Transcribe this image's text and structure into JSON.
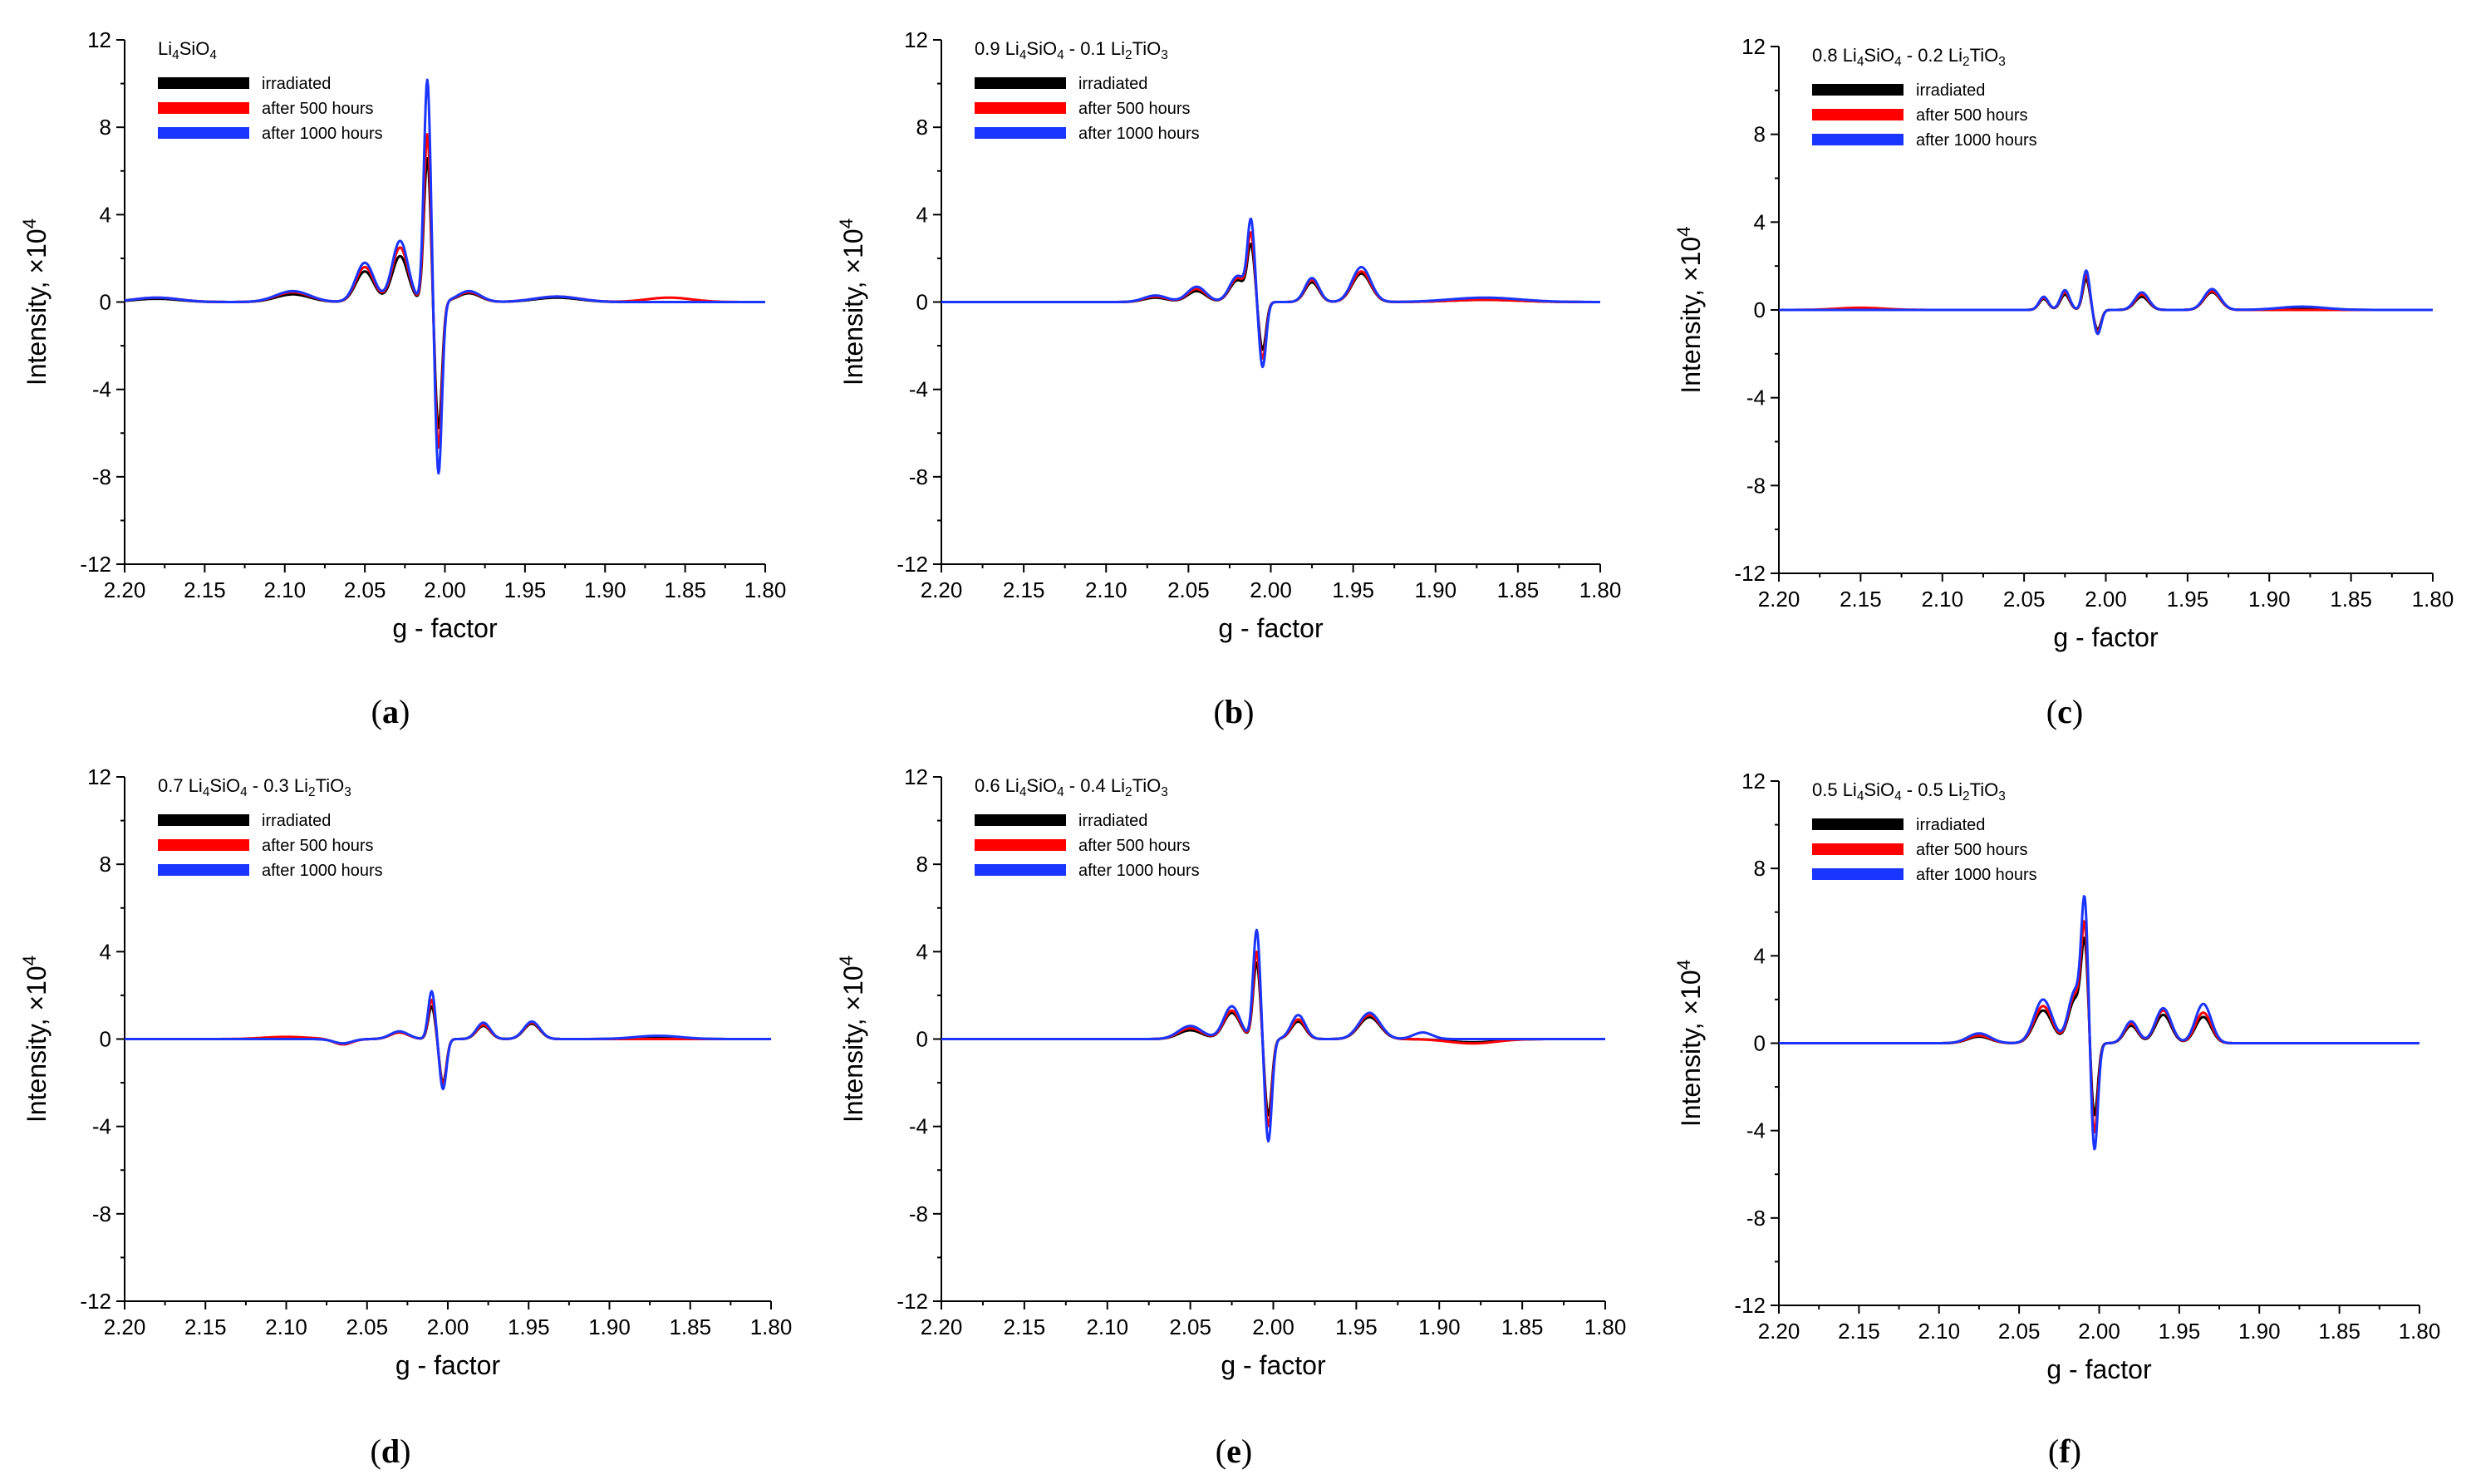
{
  "chart_data": [
    {
      "panel": "(a)",
      "sub_letter": "a",
      "type": "line",
      "title_parts": [
        "Li",
        "4",
        "SiO",
        "4"
      ],
      "xlabel": "g - factor",
      "ylabel": "Intensity, ×10",
      "ylabel_exp": "4",
      "xlim": [
        2.2,
        1.8
      ],
      "ylim": [
        -12,
        12
      ],
      "xticks": [
        "2.20",
        "2.15",
        "2.10",
        "2.05",
        "2.00",
        "1.95",
        "1.90",
        "1.85",
        "1.80"
      ],
      "yticks": [
        "12",
        "8",
        "4",
        "0",
        "-4",
        "-8",
        "-12"
      ],
      "series": [
        {
          "name": "irradiated",
          "color": "#000000",
          "peaks": [
            [
              2.18,
              0.15,
              0.02
            ],
            [
              2.095,
              0.35,
              0.015
            ],
            [
              2.05,
              1.4,
              0.008
            ],
            [
              2.028,
              2.1,
              0.007
            ],
            [
              2.011,
              6.6,
              0.003
            ],
            [
              2.004,
              -5.8,
              0.003
            ],
            [
              1.985,
              0.4,
              0.01
            ],
            [
              1.93,
              0.2,
              0.02
            ]
          ]
        },
        {
          "name": "after 500 hours",
          "color": "#ff0000",
          "peaks": [
            [
              2.18,
              0.2,
              0.02
            ],
            [
              2.095,
              0.45,
              0.015
            ],
            [
              2.05,
              1.6,
              0.008
            ],
            [
              2.028,
              2.5,
              0.007
            ],
            [
              2.011,
              7.7,
              0.003
            ],
            [
              2.004,
              -6.7,
              0.003
            ],
            [
              1.985,
              0.45,
              0.01
            ],
            [
              1.93,
              0.25,
              0.02
            ],
            [
              1.86,
              0.2,
              0.02
            ]
          ]
        },
        {
          "name": "after 1000 hours",
          "color": "#1a35ff",
          "peaks": [
            [
              2.18,
              0.2,
              0.02
            ],
            [
              2.095,
              0.5,
              0.015
            ],
            [
              2.05,
              1.8,
              0.008
            ],
            [
              2.028,
              2.8,
              0.007
            ],
            [
              2.011,
              10.2,
              0.003
            ],
            [
              2.004,
              -7.9,
              0.003
            ],
            [
              1.985,
              0.5,
              0.01
            ],
            [
              1.93,
              0.25,
              0.02
            ]
          ]
        }
      ]
    },
    {
      "panel": "(b)",
      "sub_letter": "b",
      "type": "line",
      "title_parts": [
        "0.9 Li",
        "4",
        "SiO",
        "4",
        " - 0.1 Li",
        "2",
        "TiO",
        "3"
      ],
      "xlabel": "g - factor",
      "ylabel": "Intensity, ×10",
      "ylabel_exp": "4",
      "xlim": [
        2.2,
        1.8
      ],
      "ylim": [
        -12,
        12
      ],
      "xticks": [
        "2.20",
        "2.15",
        "2.10",
        "2.05",
        "2.00",
        "1.95",
        "1.90",
        "1.85",
        "1.80"
      ],
      "yticks": [
        "12",
        "8",
        "4",
        "0",
        "-4",
        "-8",
        "-12"
      ],
      "series": [
        {
          "name": "irradiated",
          "color": "#000000",
          "peaks": [
            [
              2.07,
              0.2,
              0.01
            ],
            [
              2.045,
              0.5,
              0.008
            ],
            [
              2.02,
              1.0,
              0.007
            ],
            [
              2.012,
              2.4,
              0.003
            ],
            [
              2.005,
              -2.2,
              0.003
            ],
            [
              1.975,
              0.9,
              0.006
            ],
            [
              1.945,
              1.3,
              0.008
            ],
            [
              1.87,
              0.1,
              0.03
            ]
          ]
        },
        {
          "name": "after 500 hours",
          "color": "#ff0000",
          "peaks": [
            [
              2.07,
              0.25,
              0.01
            ],
            [
              2.045,
              0.6,
              0.008
            ],
            [
              2.02,
              1.1,
              0.007
            ],
            [
              2.012,
              2.9,
              0.003
            ],
            [
              2.005,
              -2.6,
              0.003
            ],
            [
              1.975,
              1.0,
              0.006
            ],
            [
              1.945,
              1.4,
              0.008
            ],
            [
              1.87,
              0.1,
              0.03
            ]
          ]
        },
        {
          "name": "after 1000 hours",
          "color": "#1a35ff",
          "peaks": [
            [
              2.07,
              0.3,
              0.01
            ],
            [
              2.045,
              0.7,
              0.008
            ],
            [
              2.02,
              1.2,
              0.007
            ],
            [
              2.012,
              3.5,
              0.003
            ],
            [
              2.005,
              -3.0,
              0.003
            ],
            [
              1.975,
              1.1,
              0.006
            ],
            [
              1.945,
              1.6,
              0.008
            ],
            [
              1.87,
              0.2,
              0.03
            ]
          ]
        }
      ]
    },
    {
      "panel": "(c)",
      "sub_letter": "c",
      "type": "line",
      "title_parts": [
        "0.8 Li",
        "4",
        "SiO",
        "4",
        " - 0.2 Li",
        "2",
        "TiO",
        "3"
      ],
      "xlabel": "g - factor",
      "ylabel": "Intensity, ×10",
      "ylabel_exp": "4",
      "xlim": [
        2.2,
        1.8
      ],
      "ylim": [
        -12,
        12
      ],
      "xticks": [
        "2.20",
        "2.15",
        "2.10",
        "2.05",
        "2.00",
        "1.95",
        "1.90",
        "1.85",
        "1.80"
      ],
      "yticks": [
        "12",
        "8",
        "4",
        "0",
        "-4",
        "-8",
        "-12"
      ],
      "series": [
        {
          "name": "irradiated",
          "color": "#000000",
          "peaks": [
            [
              2.038,
              0.5,
              0.004
            ],
            [
              2.025,
              0.7,
              0.004
            ],
            [
              2.012,
              1.4,
              0.003
            ],
            [
              2.005,
              -0.9,
              0.003
            ],
            [
              1.978,
              0.6,
              0.006
            ],
            [
              1.935,
              0.8,
              0.007
            ],
            [
              1.88,
              0.1,
              0.02
            ]
          ]
        },
        {
          "name": "after 500 hours",
          "color": "#ff0000",
          "peaks": [
            [
              2.038,
              0.55,
              0.004
            ],
            [
              2.025,
              0.8,
              0.004
            ],
            [
              2.012,
              1.6,
              0.003
            ],
            [
              2.005,
              -1.0,
              0.003
            ],
            [
              1.978,
              0.7,
              0.006
            ],
            [
              1.935,
              0.85,
              0.007
            ],
            [
              2.15,
              0.1,
              0.02
            ]
          ]
        },
        {
          "name": "after 1000 hours",
          "color": "#1a35ff",
          "peaks": [
            [
              2.038,
              0.6,
              0.004
            ],
            [
              2.025,
              0.9,
              0.004
            ],
            [
              2.012,
              1.8,
              0.003
            ],
            [
              2.005,
              -1.1,
              0.003
            ],
            [
              1.978,
              0.8,
              0.006
            ],
            [
              1.935,
              0.95,
              0.007
            ],
            [
              1.88,
              0.15,
              0.02
            ]
          ]
        }
      ]
    },
    {
      "panel": "(d)",
      "sub_letter": "d",
      "type": "line",
      "title_parts": [
        "0.7 Li",
        "4",
        "SiO",
        "4",
        " - 0.3 Li",
        "2",
        "TiO",
        "3"
      ],
      "xlabel": "g - factor",
      "ylabel": "Intensity, ×10",
      "ylabel_exp": "4",
      "xlim": [
        2.2,
        1.8
      ],
      "ylim": [
        -12,
        12
      ],
      "xticks": [
        "2.20",
        "2.15",
        "2.10",
        "2.05",
        "2.00",
        "1.95",
        "1.90",
        "1.85",
        "1.80"
      ],
      "yticks": [
        "12",
        "8",
        "4",
        "0",
        "-4",
        "-8",
        "-12"
      ],
      "series": [
        {
          "name": "irradiated",
          "color": "#000000",
          "peaks": [
            [
              2.065,
              -0.2,
              0.008
            ],
            [
              2.03,
              0.3,
              0.008
            ],
            [
              2.01,
              1.5,
              0.003
            ],
            [
              2.003,
              -2.0,
              0.003
            ],
            [
              1.978,
              0.6,
              0.006
            ],
            [
              1.948,
              0.7,
              0.007
            ],
            [
              1.87,
              0.1,
              0.02
            ]
          ]
        },
        {
          "name": "after 500 hours",
          "color": "#ff0000",
          "peaks": [
            [
              2.065,
              -0.25,
              0.008
            ],
            [
              2.03,
              0.3,
              0.008
            ],
            [
              2.01,
              1.8,
              0.003
            ],
            [
              2.003,
              -2.1,
              0.003
            ],
            [
              1.978,
              0.65,
              0.006
            ],
            [
              1.948,
              0.75,
              0.007
            ],
            [
              2.1,
              0.1,
              0.02
            ]
          ]
        },
        {
          "name": "after 1000 hours",
          "color": "#1a35ff",
          "peaks": [
            [
              2.065,
              -0.2,
              0.008
            ],
            [
              2.03,
              0.35,
              0.008
            ],
            [
              2.01,
              2.2,
              0.003
            ],
            [
              2.003,
              -2.3,
              0.003
            ],
            [
              1.978,
              0.75,
              0.006
            ],
            [
              1.948,
              0.8,
              0.007
            ],
            [
              1.87,
              0.15,
              0.02
            ]
          ]
        }
      ]
    },
    {
      "panel": "(e)",
      "sub_letter": "e",
      "type": "line",
      "title_parts": [
        "0.6 Li",
        "4",
        "SiO",
        "4",
        " - 0.4 Li",
        "2",
        "TiO",
        "3"
      ],
      "xlabel": "g - factor",
      "ylabel": "Intensity, ×10",
      "ylabel_exp": "4",
      "xlim": [
        2.2,
        1.8
      ],
      "ylim": [
        -12,
        12
      ],
      "xticks": [
        "2.20",
        "2.15",
        "2.10",
        "2.05",
        "2.00",
        "1.95",
        "1.90",
        "1.85",
        "1.80"
      ],
      "yticks": [
        "12",
        "8",
        "4",
        "0",
        "-4",
        "-8",
        "-12"
      ],
      "series": [
        {
          "name": "irradiated",
          "color": "#000000",
          "peaks": [
            [
              2.05,
              0.4,
              0.01
            ],
            [
              2.025,
              1.2,
              0.007
            ],
            [
              2.01,
              3.5,
              0.003
            ],
            [
              2.003,
              -3.5,
              0.003
            ],
            [
              1.985,
              0.8,
              0.006
            ],
            [
              1.942,
              1.0,
              0.009
            ],
            [
              1.88,
              -0.15,
              0.02
            ]
          ]
        },
        {
          "name": "after 500 hours",
          "color": "#ff0000",
          "peaks": [
            [
              2.05,
              0.5,
              0.01
            ],
            [
              2.025,
              1.3,
              0.007
            ],
            [
              2.01,
              4.0,
              0.003
            ],
            [
              2.003,
              -4.0,
              0.003
            ],
            [
              1.985,
              0.9,
              0.006
            ],
            [
              1.942,
              1.1,
              0.009
            ],
            [
              1.88,
              -0.2,
              0.02
            ]
          ]
        },
        {
          "name": "after 1000 hours",
          "color": "#1a35ff",
          "peaks": [
            [
              2.05,
              0.6,
              0.01
            ],
            [
              2.025,
              1.5,
              0.007
            ],
            [
              2.01,
              5.0,
              0.003
            ],
            [
              2.003,
              -4.7,
              0.003
            ],
            [
              1.985,
              1.1,
              0.006
            ],
            [
              1.942,
              1.2,
              0.009
            ],
            [
              1.91,
              0.3,
              0.008
            ]
          ]
        }
      ]
    },
    {
      "panel": "(f)",
      "sub_letter": "f",
      "type": "line",
      "title_parts": [
        "0.5 Li",
        "4",
        "SiO",
        "4",
        " - 0.5 Li",
        "2",
        "TiO",
        "3"
      ],
      "xlabel": "g - factor",
      "ylabel": "Intensity, ×10",
      "ylabel_exp": "4",
      "xlim": [
        2.2,
        1.8
      ],
      "ylim": [
        -12,
        12
      ],
      "xticks": [
        "2.20",
        "2.15",
        "2.10",
        "2.05",
        "2.00",
        "1.95",
        "1.90",
        "1.85",
        "1.80"
      ],
      "yticks": [
        "12",
        "8",
        "4",
        "0",
        "-4",
        "-8",
        "-12"
      ],
      "series": [
        {
          "name": "irradiated",
          "color": "#000000",
          "peaks": [
            [
              2.075,
              0.3,
              0.01
            ],
            [
              2.035,
              1.5,
              0.008
            ],
            [
              2.015,
              2.0,
              0.006
            ],
            [
              2.009,
              4.1,
              0.003
            ],
            [
              2.003,
              -3.4,
              0.003
            ],
            [
              1.98,
              0.8,
              0.006
            ],
            [
              1.96,
              1.3,
              0.007
            ],
            [
              1.935,
              1.2,
              0.007
            ]
          ]
        },
        {
          "name": "after 500 hours",
          "color": "#ff0000",
          "peaks": [
            [
              2.075,
              0.35,
              0.01
            ],
            [
              2.035,
              1.7,
              0.008
            ],
            [
              2.015,
              2.2,
              0.006
            ],
            [
              2.009,
              4.8,
              0.003
            ],
            [
              2.003,
              -4.2,
              0.003
            ],
            [
              1.98,
              0.9,
              0.006
            ],
            [
              1.96,
              1.5,
              0.007
            ],
            [
              1.935,
              1.4,
              0.007
            ]
          ]
        },
        {
          "name": "after 1000 hours",
          "color": "#1a35ff",
          "peaks": [
            [
              2.075,
              0.45,
              0.01
            ],
            [
              2.035,
              2.0,
              0.008
            ],
            [
              2.015,
              2.4,
              0.006
            ],
            [
              2.009,
              5.9,
              0.003
            ],
            [
              2.003,
              -5.0,
              0.003
            ],
            [
              1.98,
              1.0,
              0.006
            ],
            [
              1.96,
              1.6,
              0.007
            ],
            [
              1.935,
              1.8,
              0.007
            ]
          ]
        }
      ]
    }
  ]
}
